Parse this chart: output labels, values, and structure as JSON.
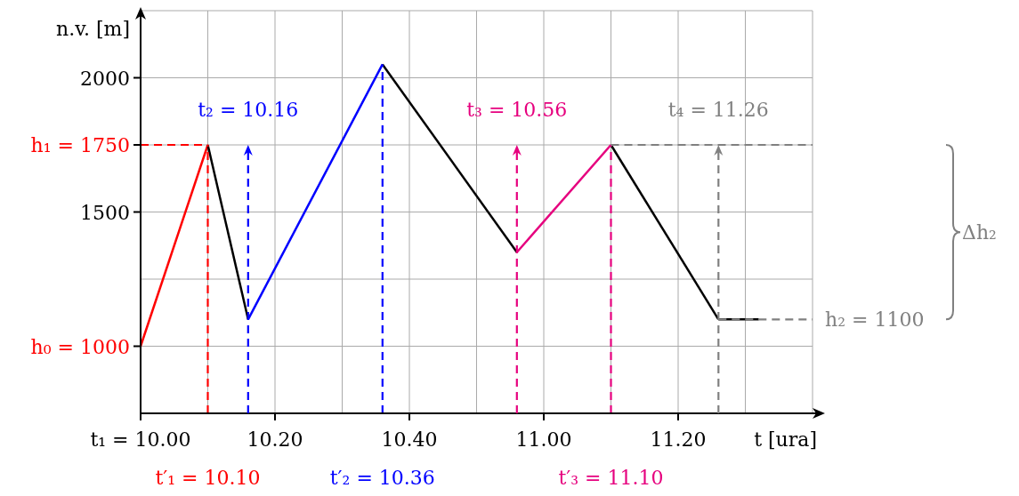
{
  "chart_data": {
    "type": "line",
    "ylabel": "n.v. [m]",
    "xlabel": "t [ura]",
    "xlim": [
      "2000-01-01T10:00",
      "2000-01-01T11:40"
    ],
    "ylim": [
      750,
      2250
    ],
    "xticks": [
      {
        "value": "2000-01-01T10:00",
        "label": "t₁ = 10.00"
      },
      {
        "value": "2000-01-01T10:10",
        "label": null
      },
      {
        "value": "2000-01-01T10:20",
        "label": "10.20"
      },
      {
        "value": "2000-01-01T10:30",
        "label": null
      },
      {
        "value": "2000-01-01T10:40",
        "label": "10.40"
      },
      {
        "value": "2000-01-01T10:50",
        "label": null
      },
      {
        "value": "2000-01-01T11:00",
        "label": "11.00"
      },
      {
        "value": "2000-01-01T11:10",
        "label": null
      },
      {
        "value": "2000-01-01T11:20",
        "label": "11.20"
      },
      {
        "value": "2000-01-01T11:30",
        "label": null
      }
    ],
    "yticks": [
      {
        "value": 1000,
        "label": "h₀ = 1000"
      },
      {
        "value": 1250,
        "label": null
      },
      {
        "value": 1500,
        "label": "1500"
      },
      {
        "value": 1750,
        "label": "h₁ = 1750"
      },
      {
        "value": 2000,
        "label": "2000"
      },
      {
        "value": 2250,
        "label": null
      }
    ],
    "grid": true,
    "line_style": "solid",
    "series": [
      {
        "color": "#ff0000",
        "x": [
          "2000-01-01T10:00",
          "2000-01-01T10:10"
        ],
        "values": [
          1000,
          1750
        ]
      },
      {
        "color": "#000000",
        "x": [
          "2000-01-01T10:10",
          "2000-01-01T10:16"
        ],
        "values": [
          1750,
          1100
        ]
      },
      {
        "color": "#0000ff",
        "x": [
          "2000-01-01T10:16",
          "2000-01-01T10:36"
        ],
        "values": [
          1100,
          2050
        ]
      },
      {
        "color": "#000000",
        "x": [
          "2000-01-01T10:36",
          "2000-01-01T10:56"
        ],
        "values": [
          2050,
          1350
        ]
      },
      {
        "color": "#e6007e",
        "x": [
          "2000-01-01T10:56",
          "2000-01-01T11:10"
        ],
        "values": [
          1350,
          1750
        ]
      },
      {
        "color": "#000000",
        "x": [
          "2000-01-01T11:10",
          "2000-01-01T11:26"
        ],
        "values": [
          1750,
          1100
        ]
      },
      {
        "color": "#000000",
        "x": [
          "2000-01-01T11:26",
          "2000-01-01T11:32"
        ],
        "values": [
          1100,
          1100
        ]
      },
      {
        "color": "#ff0000",
        "x": [
          "2000-01-01T10:00",
          "2000-01-01T10:10"
        ],
        "values": [
          1750,
          1750
        ],
        "line_style": "dashed"
      },
      {
        "color": "#ff0000",
        "x": [
          "2000-01-01T10:10",
          "2000-01-01T10:10"
        ],
        "values": [
          750,
          1750
        ],
        "line_style": "dashed"
      },
      {
        "color": "#0000ff",
        "x": [
          "2000-01-01T10:36",
          "2000-01-01T10:36"
        ],
        "values": [
          750,
          2050
        ],
        "line_style": "dashed"
      },
      {
        "color": "#e6007e",
        "x": [
          "2000-01-01T11:10",
          "2000-01-01T11:10"
        ],
        "values": [
          750,
          1750
        ],
        "line_style": "dashed"
      },
      {
        "color": "#808080",
        "x": [
          "2000-01-01T11:10",
          "2000-01-01T11:40"
        ],
        "values": [
          1750,
          1750
        ],
        "line_style": "dashed"
      },
      {
        "color": "#808080",
        "x": [
          "2000-01-01T11:26",
          "2000-01-01T11:40"
        ],
        "values": [
          1100,
          1100
        ],
        "line_style": "dashed"
      }
    ],
    "ref_lines": [
      {
        "axis": "x",
        "value": "2000-01-01T10:16",
        "label": "t₂ = 10.16",
        "color": "#0000ff",
        "line_style": "dashed"
      },
      {
        "axis": "x",
        "value": "2000-01-01T10:56",
        "label": "t₃ = 10.56",
        "color": "#e6007e",
        "line_style": "dashed"
      },
      {
        "axis": "x",
        "value": "2000-01-01T11:26",
        "label": "t₄ = 11.26",
        "color": "#808080",
        "line_style": "dashed"
      }
    ],
    "annotations": [
      "t′₁ = 10.10",
      "t′₂ = 10.36",
      "t′₃ = 11.10",
      "h₂ = 1100",
      "Δh₂"
    ]
  }
}
